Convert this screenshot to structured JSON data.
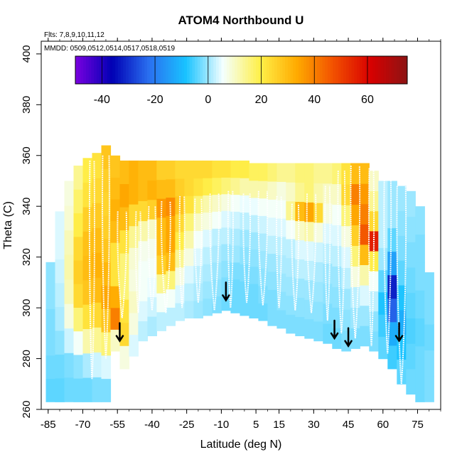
{
  "chart_data": {
    "type": "heatmap",
    "title": "ATOM4 Northbound U",
    "flights_note": "Flts: 7,8,9,10,11,12",
    "dates_note": "MMDD: 0509,0512,0514,0517,0518,0519",
    "xlabel": "Latitude (deg N)",
    "ylabel": "Theta (C)",
    "xlim": [
      -88,
      85
    ],
    "ylim": [
      260,
      405
    ],
    "x_ticks": [
      -85,
      -70,
      -55,
      -40,
      -25,
      -10,
      5,
      15,
      30,
      45,
      60,
      75
    ],
    "y_ticks": [
      260,
      280,
      300,
      320,
      340,
      360,
      380,
      400
    ],
    "colorbar": {
      "range": [
        -50,
        75
      ],
      "ticks": [
        -40,
        -20,
        0,
        20,
        40,
        60
      ],
      "colors": [
        "#7a00e0",
        "#0000b4",
        "#2a70f0",
        "#19c3ff",
        "#f4ffff",
        "#fff04a",
        "#ffab00",
        "#f25000",
        "#d80000",
        "#8c1414"
      ]
    },
    "field_columns": [
      {
        "lat": -84,
        "bottom": 263,
        "top": 318,
        "u": [
          -4,
          -3,
          -2,
          -2,
          -1,
          -1
        ]
      },
      {
        "lat": -80,
        "bottom": 263,
        "top": 338,
        "u": [
          -4,
          -3,
          -1,
          1,
          2,
          3,
          4,
          4
        ]
      },
      {
        "lat": -76,
        "bottom": 263,
        "top": 350,
        "u": [
          -3,
          -2,
          3,
          8,
          11,
          12,
          11,
          9,
          8
        ]
      },
      {
        "lat": -72,
        "bottom": 263,
        "top": 356,
        "u": [
          -3,
          -1,
          6,
          16,
          24,
          26,
          24,
          20,
          17,
          14
        ]
      },
      {
        "lat": -68,
        "bottom": 263,
        "top": 359,
        "u": [
          -3,
          1,
          12,
          22,
          28,
          30,
          29,
          26,
          22,
          20
        ]
      },
      {
        "lat": -64,
        "bottom": 263,
        "top": 361,
        "u": [
          -2,
          3,
          14,
          24,
          30,
          32,
          30,
          27,
          24,
          22
        ]
      },
      {
        "lat": -60,
        "bottom": 263,
        "top": 364,
        "u": [
          -2,
          4,
          16,
          28,
          34,
          31,
          28,
          26,
          25,
          26,
          28
        ]
      },
      {
        "lat": -56,
        "bottom": 283,
        "top": 360,
        "u": [
          10,
          40,
          33,
          22,
          22,
          30,
          32,
          30,
          28
        ]
      },
      {
        "lat": -52,
        "bottom": 276,
        "top": 358,
        "u": [
          8,
          24,
          22,
          16,
          16,
          22,
          30,
          34,
          30
        ]
      },
      {
        "lat": -48,
        "bottom": 281,
        "top": 358,
        "u": [
          4,
          8,
          10,
          8,
          9,
          14,
          24,
          32,
          32
        ]
      },
      {
        "lat": -44,
        "bottom": 287,
        "top": 358,
        "u": [
          2,
          4,
          6,
          6,
          7,
          12,
          24,
          30,
          30
        ]
      },
      {
        "lat": -40,
        "bottom": 289,
        "top": 358,
        "u": [
          1,
          3,
          5,
          6,
          7,
          10,
          26,
          32,
          30
        ]
      },
      {
        "lat": -36,
        "bottom": 291,
        "top": 358,
        "u": [
          2,
          6,
          14,
          26,
          30,
          30,
          36,
          30,
          26
        ]
      },
      {
        "lat": -32,
        "bottom": 293,
        "top": 358,
        "u": [
          2,
          6,
          16,
          30,
          34,
          34,
          38,
          30,
          26
        ]
      },
      {
        "lat": -28,
        "bottom": 295,
        "top": 358,
        "u": [
          2,
          4,
          8,
          14,
          20,
          24,
          28,
          26,
          24
        ]
      },
      {
        "lat": -24,
        "bottom": 296,
        "top": 358,
        "u": [
          1,
          2,
          4,
          8,
          12,
          16,
          22,
          24,
          24
        ]
      },
      {
        "lat": -20,
        "bottom": 296,
        "top": 358,
        "u": [
          0,
          1,
          2,
          4,
          6,
          10,
          16,
          22,
          24
        ]
      },
      {
        "lat": -16,
        "bottom": 297,
        "top": 358,
        "u": [
          -1,
          0,
          1,
          2,
          4,
          8,
          12,
          20,
          24
        ]
      },
      {
        "lat": -12,
        "bottom": 298,
        "top": 358,
        "u": [
          -2,
          -1,
          0,
          1,
          2,
          6,
          10,
          18,
          22
        ]
      },
      {
        "lat": -8,
        "bottom": 299,
        "top": 358,
        "u": [
          -3,
          -2,
          -1,
          0,
          2,
          4,
          8,
          16,
          22
        ]
      },
      {
        "lat": -4,
        "bottom": 298,
        "top": 358,
        "u": [
          -3,
          -3,
          -2,
          0,
          1,
          3,
          6,
          14,
          20
        ]
      },
      {
        "lat": 0,
        "bottom": 297,
        "top": 358,
        "u": [
          -3,
          -3,
          -2,
          -1,
          0,
          2,
          5,
          12,
          20
        ]
      },
      {
        "lat": 4,
        "bottom": 296,
        "top": 357,
        "u": [
          -3,
          -3,
          -2,
          -1,
          0,
          2,
          5,
          12,
          18
        ]
      },
      {
        "lat": 8,
        "bottom": 295,
        "top": 357,
        "u": [
          -3,
          -2,
          -1,
          0,
          1,
          3,
          6,
          12,
          18
        ]
      },
      {
        "lat": 12,
        "bottom": 293,
        "top": 357,
        "u": [
          -2,
          -2,
          -1,
          0,
          2,
          4,
          6,
          10,
          16
        ]
      },
      {
        "lat": 16,
        "bottom": 292,
        "top": 357,
        "u": [
          -2,
          -1,
          0,
          1,
          2,
          4,
          6,
          8,
          14
        ]
      },
      {
        "lat": 20,
        "bottom": 290,
        "top": 357,
        "u": [
          -2,
          -1,
          0,
          1,
          2,
          6,
          14,
          10,
          14
        ]
      },
      {
        "lat": 24,
        "bottom": 289,
        "top": 357,
        "u": [
          -2,
          -1,
          0,
          2,
          4,
          10,
          30,
          14,
          16
        ]
      },
      {
        "lat": 28,
        "bottom": 288,
        "top": 357,
        "u": [
          -2,
          -1,
          0,
          2,
          4,
          12,
          34,
          16,
          16
        ]
      },
      {
        "lat": 32,
        "bottom": 287,
        "top": 357,
        "u": [
          -2,
          -1,
          0,
          1,
          3,
          8,
          24,
          12,
          14
        ]
      },
      {
        "lat": 36,
        "bottom": 286,
        "top": 357,
        "u": [
          -3,
          -2,
          -1,
          0,
          2,
          4,
          8,
          10,
          14
        ]
      },
      {
        "lat": 40,
        "bottom": 284,
        "top": 357,
        "u": [
          -3,
          -2,
          -1,
          0,
          2,
          4,
          6,
          10,
          16
        ]
      },
      {
        "lat": 44,
        "bottom": 283,
        "top": 357,
        "u": [
          -2,
          -1,
          0,
          2,
          4,
          8,
          16,
          24,
          22
        ]
      },
      {
        "lat": 48,
        "bottom": 284,
        "top": 357,
        "u": [
          -2,
          0,
          2,
          8,
          16,
          26,
          34,
          40,
          30
        ]
      },
      {
        "lat": 52,
        "bottom": 285,
        "top": 357,
        "u": [
          -2,
          0,
          4,
          12,
          30,
          46,
          40,
          36,
          30
        ]
      },
      {
        "lat": 56,
        "bottom": 283,
        "top": 354,
        "u": [
          -2,
          -1,
          2,
          6,
          20,
          56,
          24,
          14,
          10
        ]
      },
      {
        "lat": 60,
        "bottom": 280,
        "top": 350,
        "u": [
          -4,
          -6,
          -8,
          -4,
          0,
          2,
          2,
          2
        ]
      },
      {
        "lat": 64,
        "bottom": 276,
        "top": 350,
        "u": [
          -6,
          -12,
          -24,
          -32,
          -14,
          -4,
          0,
          0
        ]
      },
      {
        "lat": 68,
        "bottom": 270,
        "top": 348,
        "u": [
          -4,
          -8,
          -12,
          -8,
          -4,
          -2,
          -1,
          0
        ]
      },
      {
        "lat": 72,
        "bottom": 266,
        "top": 346,
        "u": [
          -3,
          -4,
          -5,
          -4,
          -3,
          -2,
          -1,
          0
        ]
      },
      {
        "lat": 76,
        "bottom": 263,
        "top": 340,
        "u": [
          -3,
          -3,
          -4,
          -3,
          -2,
          -2,
          -1
        ]
      },
      {
        "lat": 80,
        "bottom": 263,
        "top": 314,
        "u": [
          -2,
          -2,
          -3,
          -2,
          -2
        ]
      }
    ],
    "profiles": [
      {
        "lat": -66,
        "top": 358,
        "bottom": 272
      },
      {
        "lat": -60,
        "top": 360,
        "bottom": 280
      },
      {
        "lat": -53,
        "top": 338,
        "bottom": 296
      },
      {
        "lat": -46,
        "top": 338,
        "bottom": 298
      },
      {
        "lat": -40,
        "top": 340,
        "bottom": 299
      },
      {
        "lat": -34,
        "top": 342,
        "bottom": 298
      },
      {
        "lat": -27,
        "top": 344,
        "bottom": 300
      },
      {
        "lat": -20,
        "top": 343,
        "bottom": 302
      },
      {
        "lat": -13,
        "top": 345,
        "bottom": 299
      },
      {
        "lat": -6,
        "top": 346,
        "bottom": 300
      },
      {
        "lat": 1,
        "top": 345,
        "bottom": 302
      },
      {
        "lat": 8,
        "top": 346,
        "bottom": 301
      },
      {
        "lat": 15,
        "top": 344,
        "bottom": 300
      },
      {
        "lat": 22,
        "top": 341,
        "bottom": 299
      },
      {
        "lat": 29,
        "top": 345,
        "bottom": 298
      },
      {
        "lat": 36,
        "top": 348,
        "bottom": 295
      },
      {
        "lat": 42,
        "top": 354,
        "bottom": 290
      },
      {
        "lat": 48,
        "top": 356,
        "bottom": 288
      },
      {
        "lat": 55,
        "top": 355,
        "bottom": 285
      },
      {
        "lat": 62,
        "top": 352,
        "bottom": 282
      },
      {
        "lat": 68,
        "top": 348,
        "bottom": 270
      }
    ],
    "arrows": [
      {
        "lat": -54,
        "theta": 287
      },
      {
        "lat": -8,
        "theta": 303
      },
      {
        "lat": 39,
        "theta": 288
      },
      {
        "lat": 45,
        "theta": 285
      },
      {
        "lat": 67,
        "theta": 287
      }
    ]
  }
}
